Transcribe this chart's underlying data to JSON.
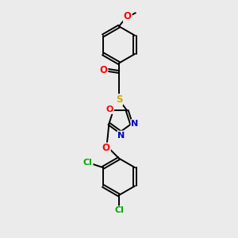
{
  "bg_color": "#ebebeb",
  "bond_color": "#000000",
  "bond_width": 1.4,
  "figsize": [
    3.0,
    3.0
  ],
  "dpi": 100,
  "colors": {
    "O": "#ff0000",
    "S": "#ccaa00",
    "N": "#0000cc",
    "Cl": "#00aa00",
    "C": "#000000"
  }
}
